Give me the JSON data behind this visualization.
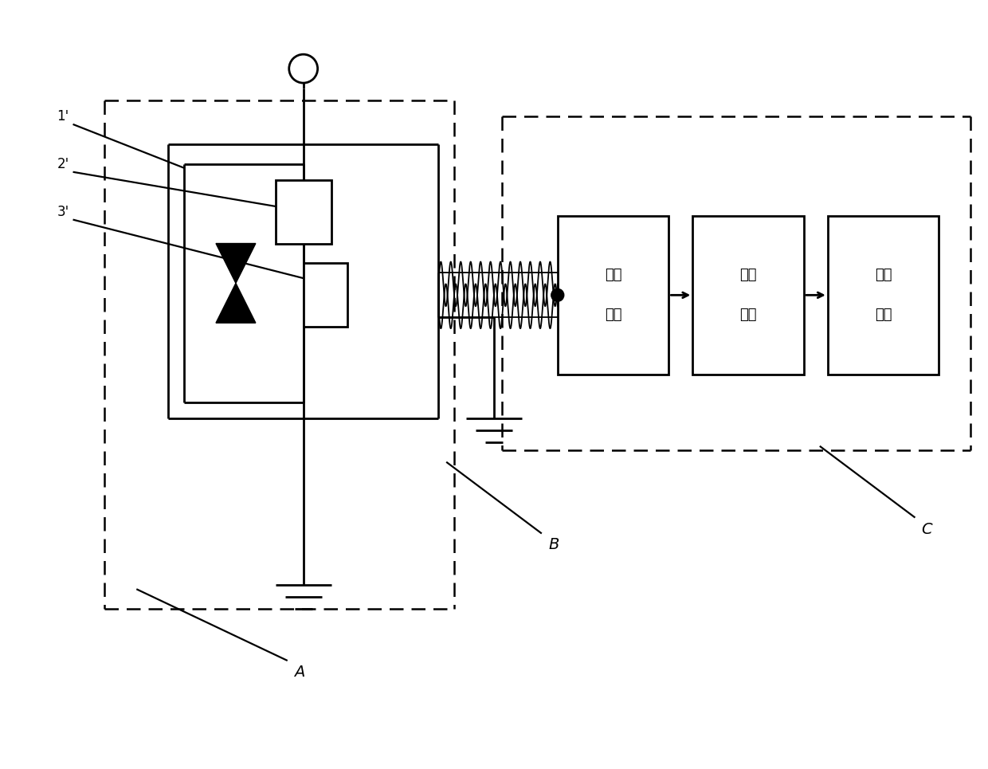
{
  "bg_color": "#ffffff",
  "line_color": "#000000",
  "fig_width": 12.4,
  "fig_height": 9.65,
  "dpi": 100,
  "labels": {
    "1prime": "1'",
    "2prime": "2'",
    "3prime": "3'",
    "A": "A",
    "B": "B",
    "C": "C",
    "box1_line1": "电压",
    "box1_line2": "跟随",
    "box2_line1": "相位",
    "box2_line2": "补偿",
    "box3_line1": "幅值",
    "box3_line2": "调节"
  }
}
